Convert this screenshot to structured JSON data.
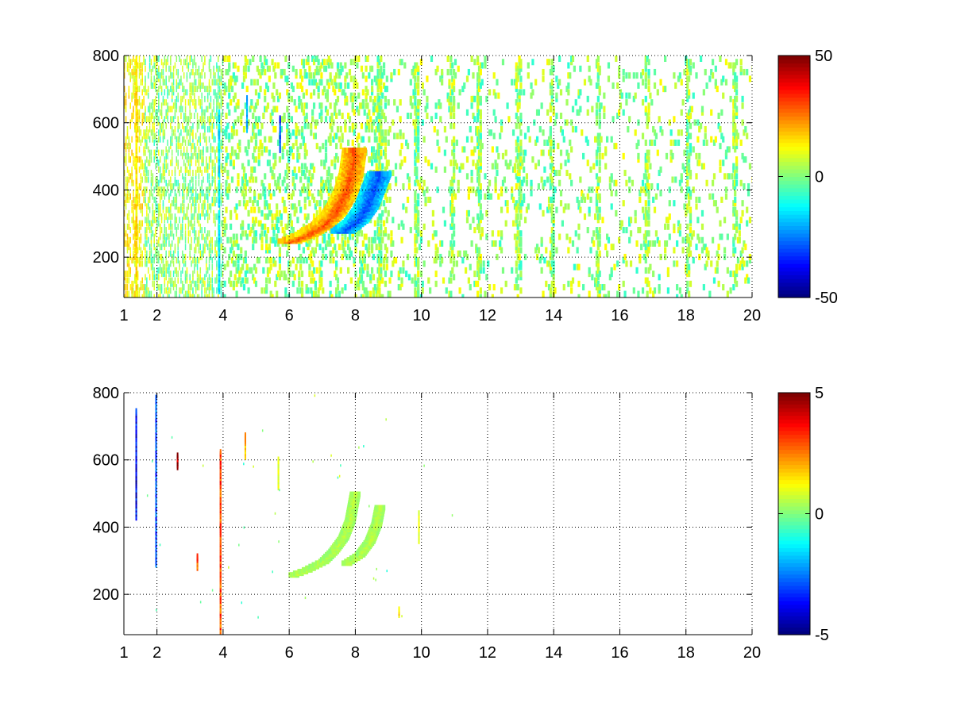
{
  "colors": {
    "background": "#ffffff",
    "axis": "#000000",
    "grid": "#000000",
    "colormap": "jet"
  },
  "chart_data": [
    {
      "type": "heatmap",
      "panel": "top",
      "title": "",
      "xlabel": "",
      "ylabel": "",
      "xlim": [
        1,
        20
      ],
      "ylim": [
        80,
        800
      ],
      "xticks": [
        1,
        2,
        4,
        6,
        8,
        10,
        12,
        14,
        16,
        18,
        20
      ],
      "yticks": [
        200,
        400,
        600,
        800
      ],
      "grid": true,
      "colorbar": {
        "min": -50,
        "max": 50,
        "ticks": [
          -50,
          0,
          50
        ],
        "colormap": "jet"
      },
      "features": [
        {
          "kind": "ridge",
          "x": [
            6.0,
            6.5,
            7.0,
            7.3,
            7.5,
            7.7,
            7.85,
            7.95
          ],
          "y": [
            250,
            270,
            300,
            330,
            360,
            400,
            450,
            520
          ],
          "value": 30
        },
        {
          "kind": "ridge",
          "x": [
            7.6,
            8.0,
            8.3,
            8.5,
            8.7
          ],
          "y": [
            280,
            310,
            350,
            400,
            450
          ],
          "value": -30
        },
        {
          "kind": "column",
          "x": 1.35,
          "y": [
            80,
            800
          ],
          "value": 15
        },
        {
          "kind": "column",
          "x": 3.85,
          "y": [
            100,
            640
          ],
          "value": -15
        },
        {
          "kind": "segment",
          "x": 5.7,
          "y": [
            520,
            620
          ],
          "value": -30
        },
        {
          "kind": "segment",
          "x": 4.7,
          "y": [
            580,
            680
          ],
          "value": -20
        }
      ]
    },
    {
      "type": "heatmap",
      "panel": "bottom",
      "title": "",
      "xlabel": "",
      "ylabel": "",
      "xlim": [
        1,
        20
      ],
      "ylim": [
        80,
        800
      ],
      "xticks": [
        1,
        2,
        4,
        6,
        8,
        10,
        12,
        14,
        16,
        18,
        20
      ],
      "yticks": [
        200,
        400,
        600,
        800
      ],
      "grid": true,
      "colorbar": {
        "min": -5,
        "max": 5,
        "ticks": [
          -5,
          0,
          5
        ],
        "colormap": "jet"
      },
      "features": [
        {
          "kind": "ridge",
          "x": [
            6.1,
            6.5,
            7.0,
            7.3,
            7.6,
            7.8,
            7.95
          ],
          "y": [
            260,
            275,
            300,
            330,
            370,
            420,
            500
          ],
          "value": 0.6
        },
        {
          "kind": "ridge",
          "x": [
            7.7,
            8.1,
            8.4,
            8.6,
            8.7
          ],
          "y": [
            295,
            320,
            360,
            410,
            460
          ],
          "value": 0.6
        },
        {
          "kind": "segment",
          "x": 1.35,
          "y": [
            430,
            750
          ],
          "value": -4
        },
        {
          "kind": "segment",
          "x": 1.95,
          "y": [
            290,
            790
          ],
          "value": -3
        },
        {
          "kind": "segment",
          "x": 3.9,
          "y": [
            80,
            630
          ],
          "value": 3
        },
        {
          "kind": "segment",
          "x": 4.65,
          "y": [
            610,
            680
          ],
          "value": 2
        },
        {
          "kind": "segment",
          "x": 5.65,
          "y": [
            520,
            610
          ],
          "value": 1
        },
        {
          "kind": "segment",
          "x": 2.6,
          "y": [
            580,
            620
          ],
          "value": 5
        },
        {
          "kind": "segment",
          "x": 3.2,
          "y": [
            280,
            320
          ],
          "value": 3
        },
        {
          "kind": "segment",
          "x": 9.3,
          "y": [
            140,
            160
          ],
          "value": 1.5
        },
        {
          "kind": "segment",
          "x": 9.9,
          "y": [
            360,
            450
          ],
          "value": 1
        }
      ]
    }
  ]
}
